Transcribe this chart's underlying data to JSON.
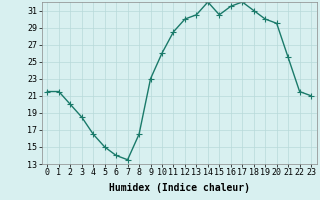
{
  "x": [
    0,
    1,
    2,
    3,
    4,
    5,
    6,
    7,
    8,
    9,
    10,
    11,
    12,
    13,
    14,
    15,
    16,
    17,
    18,
    19,
    20,
    21,
    22,
    23
  ],
  "y": [
    21.5,
    21.5,
    20.0,
    18.5,
    16.5,
    15.0,
    14.0,
    13.5,
    16.5,
    23.0,
    26.0,
    28.5,
    30.0,
    30.5,
    32.0,
    30.5,
    31.5,
    32.0,
    31.0,
    30.0,
    29.5,
    25.5,
    21.5,
    21.0
  ],
  "line_color": "#1a7a6a",
  "marker": "+",
  "marker_size": 4,
  "bg_color": "#d8f0f0",
  "grid_color": "#b8dada",
  "xlabel": "Humidex (Indice chaleur)",
  "ylabel_ticks": [
    13,
    15,
    17,
    19,
    21,
    23,
    25,
    27,
    29,
    31
  ],
  "xlim": [
    -0.5,
    23.5
  ],
  "ylim": [
    13,
    32
  ],
  "xlabel_fontsize": 7,
  "tick_fontsize": 6,
  "line_width": 1.0,
  "font_family": "monospace"
}
